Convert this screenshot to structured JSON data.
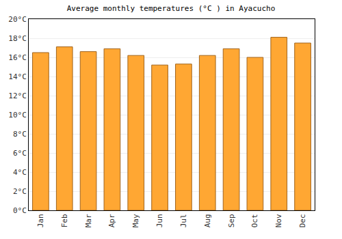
{
  "chart_data": {
    "type": "bar",
    "title": "Average monthly temperatures (°C ) in Ayacucho",
    "categories": [
      "Jan",
      "Feb",
      "Mar",
      "Apr",
      "May",
      "Jun",
      "Jul",
      "Aug",
      "Sep",
      "Oct",
      "Nov",
      "Dec"
    ],
    "values": [
      16.5,
      17.1,
      16.6,
      16.9,
      16.2,
      15.2,
      15.3,
      16.2,
      16.9,
      16.0,
      18.1,
      17.5
    ],
    "color": "#ffa733",
    "ylim": [
      0,
      20
    ],
    "yticks": [
      {
        "value": 0,
        "label": "0°C"
      },
      {
        "value": 2,
        "label": "2°C"
      },
      {
        "value": 4,
        "label": "4°C"
      },
      {
        "value": 6,
        "label": "6°C"
      },
      {
        "value": 8,
        "label": "8°C"
      },
      {
        "value": 10,
        "label": "10°C"
      },
      {
        "value": 12,
        "label": "12°C"
      },
      {
        "value": 14,
        "label": "14°C"
      },
      {
        "value": 16,
        "label": "16°C"
      },
      {
        "value": 18,
        "label": "18°C"
      },
      {
        "value": 20,
        "label": "20°C"
      }
    ],
    "grid": true
  }
}
